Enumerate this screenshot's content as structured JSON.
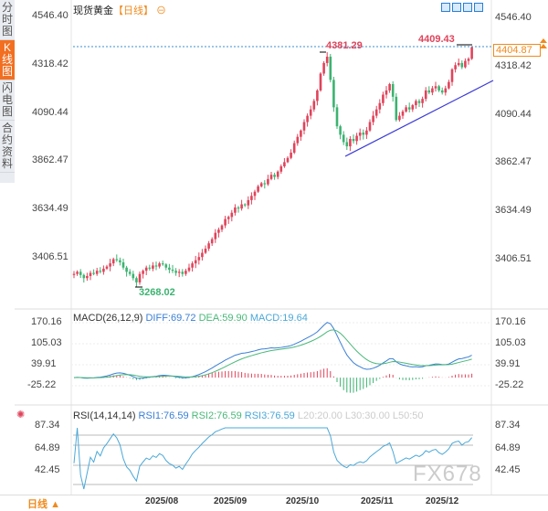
{
  "sidebar": {
    "tabs": [
      "分时图",
      "K线图",
      "闪电图",
      "合约资料"
    ],
    "active": 1
  },
  "header": {
    "instrument": "现货黄金",
    "timeframe": "【日线】",
    "toggle_icon": "circle-minus-icon"
  },
  "toolbar_icons": [
    "zoom-fit-icon",
    "chart-type-icon",
    "indicator-icon",
    "move-right-icon"
  ],
  "price_tag": "4404.87",
  "bottom": {
    "timeframe_button": "日线 ▲"
  },
  "watermark": "FX678",
  "chart_data": [
    {
      "type": "candlestick",
      "title": "现货黄金 日线",
      "y_ticks": [
        "4546.40",
        "4318.42",
        "4090.44",
        "3862.47",
        "3634.49",
        "3406.51"
      ],
      "ylim": [
        3406.51,
        4546.4
      ],
      "x_ticks": [
        "2025/08",
        "2025/09",
        "2025/10",
        "2025/11",
        "2025/12"
      ],
      "annotations": {
        "low": "3268.02",
        "peak": "4381.29",
        "high": "4409.43",
        "last": "4404.87"
      },
      "closes": [
        3330,
        3340,
        3325,
        3310,
        3320,
        3335,
        3330,
        3345,
        3340,
        3355,
        3365,
        3380,
        3400,
        3395,
        3385,
        3360,
        3340,
        3330,
        3310,
        3290,
        3330,
        3345,
        3360,
        3355,
        3370,
        3365,
        3380,
        3375,
        3360,
        3350,
        3345,
        3335,
        3340,
        3330,
        3345,
        3360,
        3380,
        3395,
        3410,
        3430,
        3450,
        3475,
        3495,
        3525,
        3540,
        3560,
        3590,
        3600,
        3620,
        3645,
        3640,
        3660,
        3655,
        3680,
        3700,
        3720,
        3745,
        3760,
        3755,
        3780,
        3800,
        3790,
        3815,
        3840,
        3860,
        3880,
        3905,
        3950,
        3980,
        4010,
        4050,
        4080,
        4110,
        4150,
        4200,
        4280,
        4330,
        4360,
        4250,
        4120,
        4030,
        3990,
        3955,
        3935,
        3970,
        3960,
        3985,
        4000,
        3990,
        4010,
        4050,
        4080,
        4110,
        4140,
        4180,
        4200,
        4230,
        4170,
        4060,
        4080,
        4100,
        4120,
        4110,
        4130,
        4150,
        4140,
        4160,
        4200,
        4190,
        4210,
        4220,
        4200,
        4190,
        4210,
        4240,
        4300,
        4320,
        4330,
        4310,
        4340,
        4350,
        4404.87
      ]
    },
    {
      "type": "line+bar",
      "title": "MACD(26,12,9)",
      "legend": {
        "diff": "DIFF:69.72",
        "dea": "DEA:59.90",
        "macd": "MACD:19.64"
      },
      "y_ticks": [
        "170.16",
        "105.03",
        "39.91",
        "-25.22"
      ],
      "ylim": [
        -25.22,
        170.16
      ]
    },
    {
      "type": "line",
      "title": "RSI(14,14,14)",
      "legend": {
        "rsi1": "RSI1:76.59",
        "rsi2": "RSI2:76.59",
        "rsi3": "RSI3:76.59",
        "l20": "L20:20.00",
        "l30": "L30:30.00",
        "l50": "L50:50"
      },
      "y_ticks": [
        "87.34",
        "64.89",
        "42.45"
      ],
      "ylim": [
        42.45,
        87.34
      ]
    }
  ],
  "colors": {
    "up": "#e0435a",
    "down": "#3cb371",
    "diff": "#3a7fd6",
    "dea": "#49b879",
    "accent": "#f08a1c",
    "trend": "#3a3ad6"
  }
}
